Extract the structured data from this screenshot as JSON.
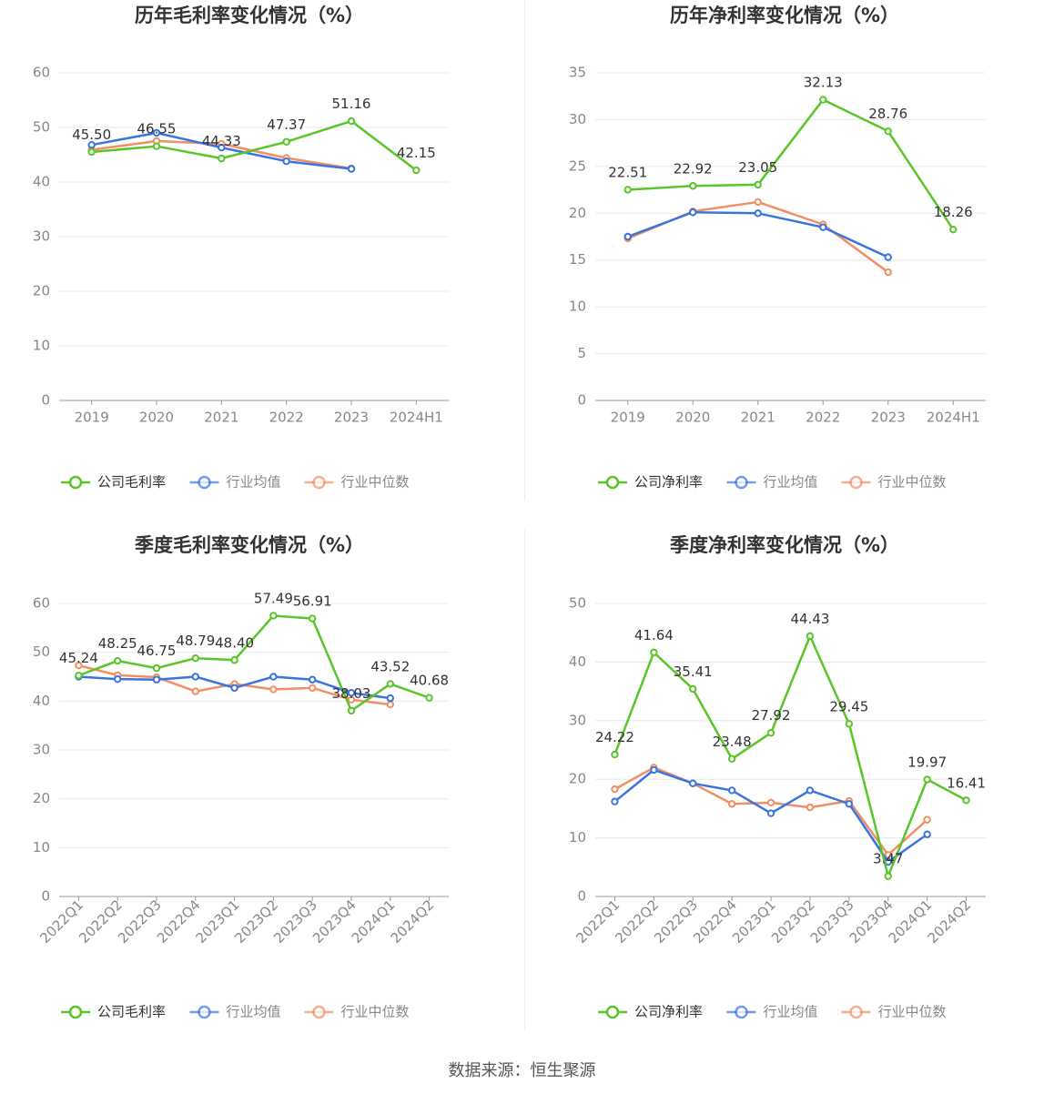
{
  "source_label": "数据来源：恒生聚源",
  "colors": {
    "company": "#5ac528",
    "avg": "#3a74e0",
    "median": "#f28e63",
    "grid": "#e6e8f0",
    "axis": "#999999",
    "text": "#333333"
  },
  "chart_data": [
    {
      "type": "line",
      "title": "历年毛利率变化情况（%）",
      "categories": [
        "2019",
        "2020",
        "2021",
        "2022",
        "2023",
        "2024H1"
      ],
      "ylim": [
        0,
        60
      ],
      "yticks": [
        0,
        10,
        20,
        30,
        40,
        50,
        60
      ],
      "rotate_x": false,
      "series": [
        {
          "name": "公司毛利率",
          "color": "company",
          "labels": true,
          "values": [
            45.5,
            46.55,
            44.33,
            47.37,
            51.16,
            42.15
          ]
        },
        {
          "name": "行业均值",
          "color": "avg",
          "labels": false,
          "values": [
            46.8,
            49.0,
            46.3,
            43.8,
            42.4,
            null
          ]
        },
        {
          "name": "行业中位数",
          "color": "median",
          "labels": false,
          "values": [
            45.9,
            47.5,
            47.0,
            44.4,
            42.5,
            null
          ]
        }
      ]
    },
    {
      "type": "line",
      "title": "历年净利率变化情况（%）",
      "categories": [
        "2019",
        "2020",
        "2021",
        "2022",
        "2023",
        "2024H1"
      ],
      "ylim": [
        0,
        35
      ],
      "yticks": [
        0,
        5,
        10,
        15,
        20,
        25,
        30,
        35
      ],
      "rotate_x": false,
      "series": [
        {
          "name": "公司净利率",
          "color": "company",
          "labels": true,
          "values": [
            22.51,
            22.92,
            23.05,
            32.13,
            28.76,
            18.26
          ]
        },
        {
          "name": "行业均值",
          "color": "avg",
          "labels": false,
          "values": [
            17.5,
            20.1,
            20.0,
            18.5,
            15.3,
            null
          ]
        },
        {
          "name": "行业中位数",
          "color": "median",
          "labels": false,
          "values": [
            17.3,
            20.2,
            21.2,
            18.8,
            13.7,
            null
          ]
        }
      ]
    },
    {
      "type": "line",
      "title": "季度毛利率变化情况（%）",
      "categories": [
        "2022Q1",
        "2022Q2",
        "2022Q3",
        "2022Q4",
        "2023Q1",
        "2023Q2",
        "2023Q3",
        "2023Q4",
        "2024Q1",
        "2024Q2"
      ],
      "ylim": [
        0,
        60
      ],
      "yticks": [
        0,
        10,
        20,
        30,
        40,
        50,
        60
      ],
      "rotate_x": true,
      "series": [
        {
          "name": "公司毛利率",
          "color": "company",
          "labels": true,
          "values": [
            45.24,
            48.25,
            46.75,
            48.79,
            48.4,
            57.49,
            56.91,
            38.03,
            43.52,
            40.68
          ]
        },
        {
          "name": "行业均值",
          "color": "avg",
          "labels": false,
          "values": [
            45.0,
            44.5,
            44.4,
            45.0,
            42.7,
            45.0,
            44.4,
            41.7,
            40.6,
            null
          ]
        },
        {
          "name": "行业中位数",
          "color": "median",
          "labels": false,
          "values": [
            47.3,
            45.3,
            44.9,
            42.0,
            43.5,
            42.4,
            42.7,
            40.3,
            39.3,
            null
          ]
        }
      ]
    },
    {
      "type": "line",
      "title": "季度净利率变化情况（%）",
      "categories": [
        "2022Q1",
        "2022Q2",
        "2022Q3",
        "2022Q4",
        "2023Q1",
        "2023Q2",
        "2023Q3",
        "2023Q4",
        "2024Q1",
        "2024Q2"
      ],
      "ylim": [
        0,
        50
      ],
      "yticks": [
        0,
        10,
        20,
        30,
        40,
        50
      ],
      "rotate_x": true,
      "series": [
        {
          "name": "公司净利率",
          "color": "company",
          "labels": true,
          "values": [
            24.22,
            41.64,
            35.41,
            23.48,
            27.92,
            44.43,
            29.45,
            3.47,
            19.97,
            16.41
          ]
        },
        {
          "name": "行业均值",
          "color": "avg",
          "labels": false,
          "values": [
            16.2,
            21.6,
            19.3,
            18.1,
            14.2,
            18.1,
            15.8,
            5.9,
            10.6,
            null
          ]
        },
        {
          "name": "行业中位数",
          "color": "median",
          "labels": false,
          "values": [
            18.3,
            22.0,
            19.3,
            15.8,
            16.0,
            15.2,
            16.3,
            7.1,
            13.1,
            null
          ]
        }
      ]
    }
  ]
}
